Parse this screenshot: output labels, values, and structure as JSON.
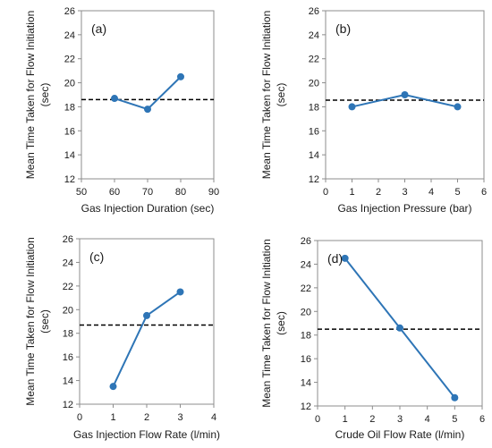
{
  "chart_data": [
    {
      "type": "line",
      "panel_label": "(a)",
      "xlabel": "Gas Injection Duration (sec)",
      "ylabel_line1": "Mean Time Taken  for Flow Initiation",
      "ylabel_line2": "(sec)",
      "xlim": [
        50,
        90
      ],
      "ylim": [
        12,
        26
      ],
      "xticks": [
        50,
        60,
        70,
        80,
        90
      ],
      "yticks": [
        12,
        14,
        16,
        18,
        20,
        22,
        24,
        26
      ],
      "x": [
        60,
        70,
        80
      ],
      "y": [
        18.7,
        17.8,
        20.5
      ],
      "reference_line": 18.6,
      "grid": false,
      "color": "#2e75b6"
    },
    {
      "type": "line",
      "panel_label": "(b)",
      "xlabel": "Gas Injection Pressure (bar)",
      "ylabel_line1": "Mean Time Taken for Flow Initiation",
      "ylabel_line2": "(sec)",
      "xlim": [
        0,
        6
      ],
      "ylim": [
        12,
        26
      ],
      "xticks": [
        0,
        1,
        2,
        3,
        4,
        5,
        6
      ],
      "yticks": [
        12,
        14,
        16,
        18,
        20,
        22,
        24,
        26
      ],
      "x": [
        1,
        3,
        5
      ],
      "y": [
        18.0,
        19.0,
        18.0
      ],
      "reference_line": 18.55,
      "grid": false,
      "color": "#2e75b6"
    },
    {
      "type": "line",
      "panel_label": "(c)",
      "xlabel": "Gas Injection Flow Rate (l/min)",
      "ylabel_line1": "Mean Time Taken for Flow Initiation",
      "ylabel_line2": "(sec)",
      "xlim": [
        0,
        4
      ],
      "ylim": [
        12,
        26
      ],
      "xticks": [
        0,
        1,
        2,
        3,
        4
      ],
      "yticks": [
        12,
        14,
        16,
        18,
        20,
        22,
        24,
        26
      ],
      "x": [
        1,
        2,
        3
      ],
      "y": [
        13.5,
        19.5,
        21.5
      ],
      "reference_line": 18.7,
      "grid": false,
      "color": "#2e75b6"
    },
    {
      "type": "line",
      "panel_label": "(d)",
      "xlabel": "Crude Oil Flow Rate (l/min)",
      "ylabel_line1": "Mean Time Taken for Flow Initiation",
      "ylabel_line2": "(sec)",
      "xlim": [
        0,
        6
      ],
      "ylim": [
        12,
        26
      ],
      "xticks": [
        0,
        1,
        2,
        3,
        4,
        5,
        6
      ],
      "yticks": [
        12,
        14,
        16,
        18,
        20,
        22,
        24,
        26
      ],
      "x": [
        1,
        3,
        5
      ],
      "y": [
        24.5,
        18.6,
        12.7
      ],
      "reference_line": 18.5,
      "grid": false,
      "color": "#2e75b6"
    }
  ]
}
